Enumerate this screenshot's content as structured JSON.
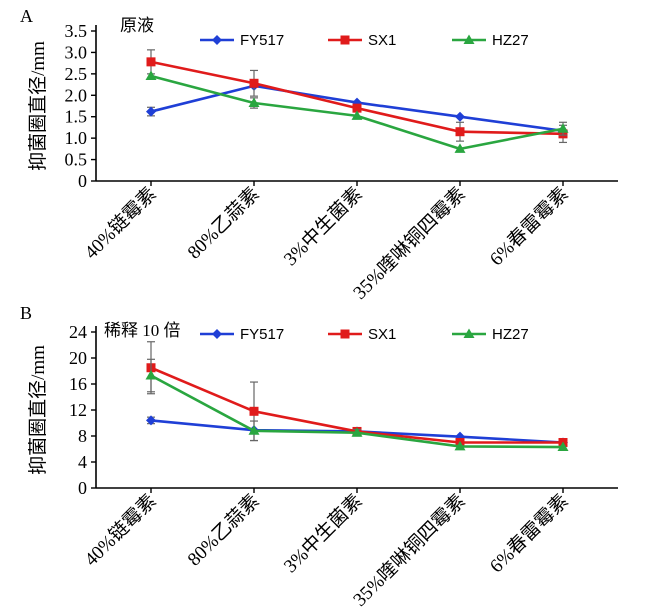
{
  "chart_data": [
    {
      "panel": "A",
      "type": "line",
      "annotation": "原液",
      "ylabel": "抑菌圈直径/mm",
      "xlabel": "",
      "categories": [
        "40%链霉素",
        "80%乙蒜素",
        "3%中生菌素",
        "35%喹啉铜四霉素",
        "6%春雷霉素"
      ],
      "ylim": [
        0,
        3.5
      ],
      "yticks": [
        "0",
        "0.5",
        "1.0",
        "1.5",
        "2.0",
        "2.5",
        "3.0",
        "3.5"
      ],
      "legend_position": "top",
      "grid": false,
      "series": [
        {
          "name": "FY517",
          "color": "#1f3fd6",
          "marker": "diamond",
          "values": [
            1.62,
            2.22,
            1.83,
            1.5,
            1.17
          ],
          "errors": [
            0.1,
            0.0,
            0.0,
            0.0,
            0.0
          ]
        },
        {
          "name": "SX1",
          "color": "#e01b1b",
          "marker": "square",
          "values": [
            2.78,
            2.28,
            1.7,
            1.15,
            1.1
          ],
          "errors": [
            0.28,
            0.3,
            0.0,
            0.22,
            0.2
          ]
        },
        {
          "name": "HZ27",
          "color": "#2aa640",
          "marker": "triangle",
          "values": [
            2.45,
            1.82,
            1.52,
            0.75,
            1.22
          ],
          "errors": [
            0.0,
            0.12,
            0.0,
            0.0,
            0.15
          ]
        }
      ]
    },
    {
      "panel": "B",
      "type": "line",
      "annotation": "稀释 10 倍",
      "ylabel": "抑菌圈直径/mm",
      "xlabel": "",
      "categories": [
        "40%链霉素",
        "80%乙蒜素",
        "3%中生菌素",
        "35%喹啉铜四霉素",
        "6%春雷霉素"
      ],
      "ylim": [
        0,
        24
      ],
      "yticks": [
        "0",
        "4",
        "8",
        "12",
        "16",
        "20",
        "24"
      ],
      "legend_position": "top",
      "grid": false,
      "series": [
        {
          "name": "FY517",
          "color": "#1f3fd6",
          "marker": "diamond",
          "values": [
            10.4,
            8.9,
            8.7,
            7.9,
            7.0
          ],
          "errors": [
            0.5,
            0.0,
            0.0,
            0.0,
            0.0
          ]
        },
        {
          "name": "SX1",
          "color": "#e01b1b",
          "marker": "square",
          "values": [
            18.5,
            11.8,
            8.7,
            7.0,
            7.0
          ],
          "errors": [
            4.0,
            4.5,
            0.5,
            0.0,
            0.0
          ]
        },
        {
          "name": "HZ27",
          "color": "#2aa640",
          "marker": "triangle",
          "values": [
            17.3,
            8.8,
            8.5,
            6.4,
            6.3
          ],
          "errors": [
            2.5,
            1.5,
            0.5,
            0.0,
            0.0
          ]
        }
      ]
    }
  ]
}
